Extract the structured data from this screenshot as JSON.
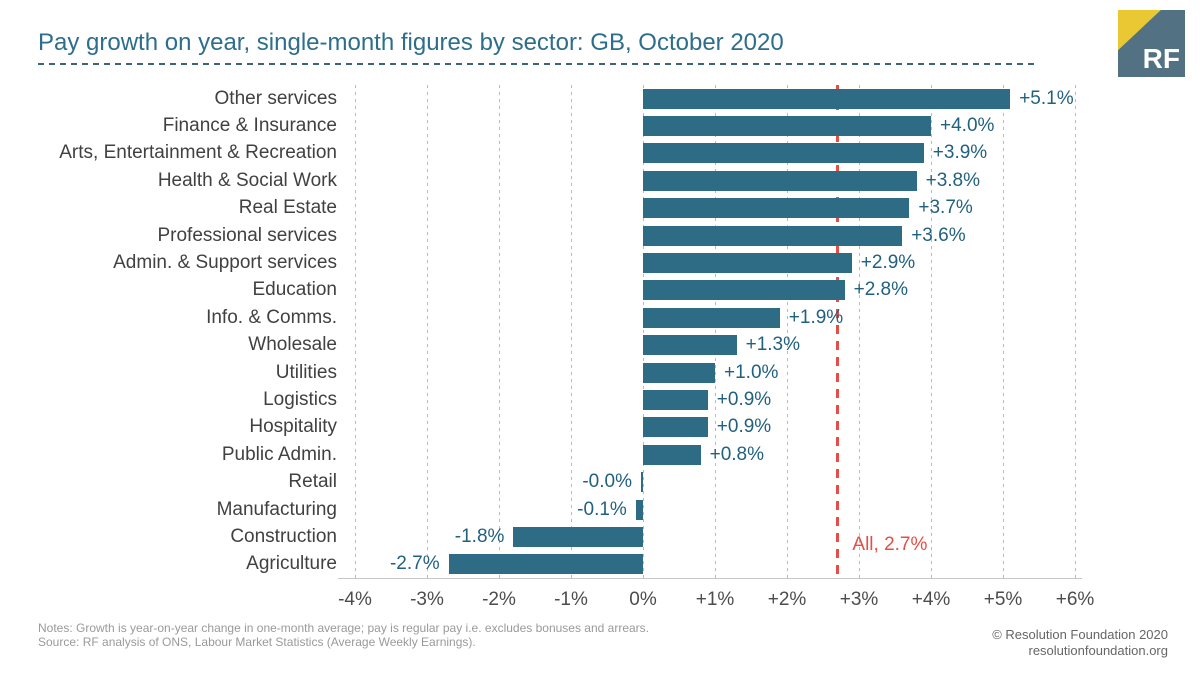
{
  "header": {
    "title": "Pay growth on year, single-month figures by sector: GB, October 2020",
    "logo_text": "RF"
  },
  "chart_data": {
    "type": "bar",
    "orientation": "horizontal",
    "title": "Pay growth on year, single-month figures by sector: GB, October 2020",
    "categories": [
      "Other services",
      "Finance & Insurance",
      "Arts, Entertainment & Recreation",
      "Health & Social Work",
      "Real Estate",
      "Professional services",
      "Admin. & Support services",
      "Education",
      "Info. & Comms.",
      "Wholesale",
      "Utilities",
      "Logistics",
      "Hospitality",
      "Public Admin.",
      "Retail",
      "Manufacturing",
      "Construction",
      "Agriculture"
    ],
    "values": [
      5.1,
      4.0,
      3.9,
      3.8,
      3.7,
      3.6,
      2.9,
      2.8,
      1.9,
      1.3,
      1.0,
      0.9,
      0.9,
      0.8,
      -0.0,
      -0.1,
      -1.8,
      -2.7
    ],
    "value_labels": [
      "+5.1%",
      "+4.0%",
      "+3.9%",
      "+3.8%",
      "+3.7%",
      "+3.6%",
      "+2.9%",
      "+2.8%",
      "+1.9%",
      "+1.3%",
      "+1.0%",
      "+0.9%",
      "+0.9%",
      "+0.8%",
      "-0.0%",
      "-0.1%",
      "-1.8%",
      "-2.7%"
    ],
    "xlim": [
      -4,
      6
    ],
    "x_tick_values": [
      -4,
      -3,
      -2,
      -1,
      0,
      1,
      2,
      3,
      4,
      5,
      6
    ],
    "x_tick_labels": [
      "-4%",
      "-3%",
      "-2%",
      "-1%",
      "0%",
      "+1%",
      "+2%",
      "+3%",
      "+4%",
      "+5%",
      "+6%"
    ],
    "grid": true,
    "legend": "none",
    "bar_color": "#2d6c84",
    "value_label_color": "#21617f",
    "reference_line": {
      "value": 2.7,
      "label": "All, 2.7%",
      "color": "#e25045"
    }
  },
  "footer": {
    "notes": "Notes: Growth is year-on-year change in one-month average; pay is regular pay i.e. excludes bonuses and arrears.",
    "source": "Source: RF analysis of ONS, Labour Market Statistics (Average Weekly Earnings).",
    "copyright": "© Resolution Foundation 2020",
    "website": "resolutionfoundation.org"
  }
}
